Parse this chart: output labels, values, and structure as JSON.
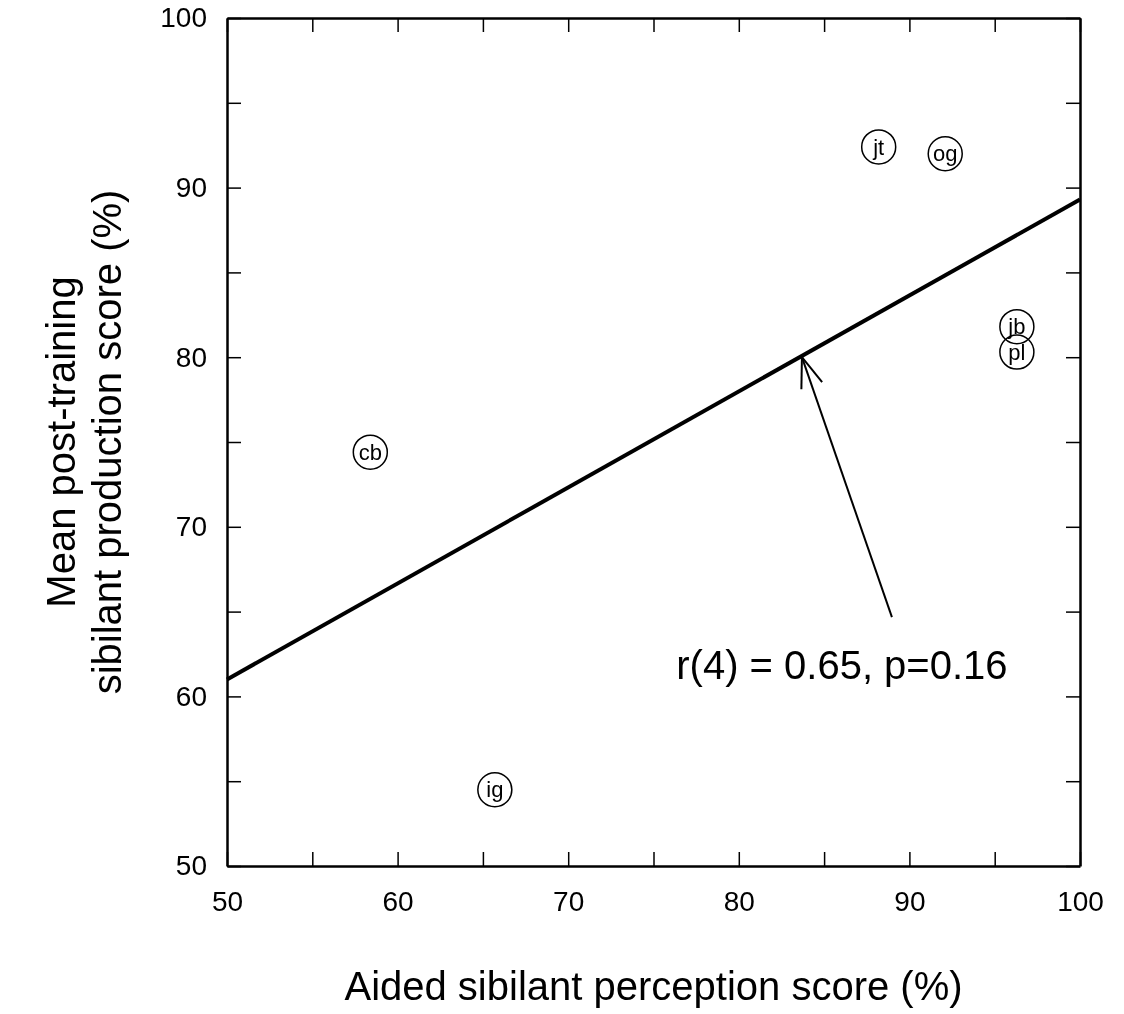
{
  "chart_data": {
    "type": "scatter",
    "xlabel": "Aided sibilant perception score (%)",
    "ylabel": "Mean post-training\nsibilant production score (%)",
    "xlim": [
      50,
      100
    ],
    "ylim": [
      50,
      100
    ],
    "xticks": [
      50,
      {
        "value": 55,
        "label": null
      },
      60,
      {
        "value": 65,
        "label": null
      },
      70,
      {
        "value": 75,
        "label": null
      },
      80,
      {
        "value": 85,
        "label": null
      },
      90,
      {
        "value": 95,
        "label": null
      },
      100
    ],
    "yticks": [
      50,
      {
        "value": 55,
        "label": null
      },
      60,
      {
        "value": 65,
        "label": null
      },
      70,
      {
        "value": 75,
        "label": null
      },
      80,
      {
        "value": 85,
        "label": null
      },
      90,
      {
        "value": 95,
        "label": null
      },
      100
    ],
    "grid": false,
    "series": [
      {
        "color": "#000000",
        "marker": "circle",
        "x": [
          88.2,
          92.1,
          96.3,
          96.3,
          58.4,
          65.7
        ],
        "values": [
          92.4,
          92.0,
          81.8,
          80.3,
          74.4,
          54.5
        ]
      },
      {
        "type": "line",
        "color": "#000000",
        "line_style": "solid",
        "x": [
          50,
          100
        ],
        "values": [
          61,
          89.3
        ]
      }
    ],
    "annotations": [
      {
        "text": "jt",
        "x": 88.2,
        "y": 92.4
      },
      {
        "text": "og",
        "x": 92.1,
        "y": 92.0
      },
      {
        "text": "jb",
        "x": 96.3,
        "y": 81.8
      },
      {
        "text": "pl",
        "x": 96.3,
        "y": 80.3
      },
      {
        "text": "cb",
        "x": 58.4,
        "y": 74.4
      },
      {
        "text": "ig",
        "x": 65.7,
        "y": 54.5
      },
      {
        "text": "r(4) = 0.65, p=0.16",
        "x": 83.7,
        "y": 80
      }
    ]
  }
}
